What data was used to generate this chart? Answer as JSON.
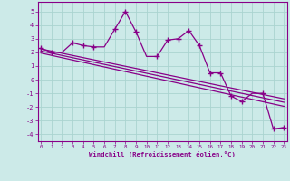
{
  "xlabel": "Windchill (Refroidissement éolien,°C)",
  "bg_color": "#cceae8",
  "grid_color": "#aad4d0",
  "line_color": "#880088",
  "x_values": [
    0,
    1,
    2,
    3,
    4,
    5,
    6,
    7,
    8,
    9,
    10,
    11,
    12,
    13,
    14,
    15,
    16,
    17,
    18,
    19,
    20,
    21,
    22,
    23
  ],
  "series1": [
    2.3,
    2.0,
    2.0,
    2.7,
    2.5,
    2.4,
    2.4,
    3.7,
    5.0,
    3.5,
    1.7,
    1.7,
    2.9,
    3.0,
    3.6,
    2.5,
    0.5,
    0.5,
    -1.2,
    -1.6,
    -1.0,
    -1.0,
    -3.6,
    -3.5
  ],
  "markers_x": [
    0,
    1,
    3,
    4,
    5,
    7,
    8,
    9,
    11,
    12,
    13,
    14,
    15,
    16,
    17,
    18,
    19,
    21,
    22,
    23
  ],
  "markers_y": [
    2.3,
    2.0,
    2.7,
    2.5,
    2.4,
    3.7,
    5.0,
    3.5,
    1.7,
    2.9,
    3.0,
    3.6,
    2.5,
    0.5,
    0.5,
    -1.2,
    -1.6,
    -1.0,
    -3.6,
    -3.5
  ],
  "trend1_x": [
    0,
    23
  ],
  "trend1_y": [
    2.25,
    -1.4
  ],
  "trend2_x": [
    0,
    23
  ],
  "trend2_y": [
    2.1,
    -1.65
  ],
  "trend3_x": [
    0,
    23
  ],
  "trend3_y": [
    1.95,
    -1.95
  ],
  "ylim": [
    -4.5,
    5.7
  ],
  "yticks": [
    -4,
    -3,
    -2,
    -1,
    0,
    1,
    2,
    3,
    4,
    5
  ],
  "xticks": [
    0,
    1,
    2,
    3,
    4,
    5,
    6,
    7,
    8,
    9,
    10,
    11,
    12,
    13,
    14,
    15,
    16,
    17,
    18,
    19,
    20,
    21,
    22,
    23
  ]
}
